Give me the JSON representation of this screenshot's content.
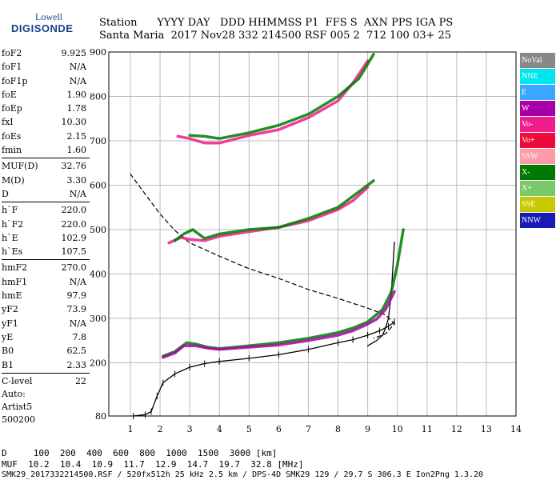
{
  "logo": {
    "line1": "Lowell",
    "line2": "DIGISONDE"
  },
  "header": {
    "line1": "Station      YYYY DAY   DDD HHMMSS P1  FFS S  AXN PPS IGA PS",
    "line2": "Santa Maria  2017 Nov28 332 214500 RSF 005 2  712 100 03+ 25"
  },
  "params": [
    [
      {
        "k": "foF2",
        "v": "9.925"
      },
      {
        "k": "foF1",
        "v": "N/A"
      },
      {
        "k": "foF1p",
        "v": "N/A"
      },
      {
        "k": "foE",
        "v": "1.90"
      },
      {
        "k": "foEp",
        "v": "1.78"
      },
      {
        "k": "fxI",
        "v": "10.30"
      },
      {
        "k": "foEs",
        "v": "2.15"
      },
      {
        "k": "fmin",
        "v": "1.60"
      }
    ],
    [
      {
        "k": "MUF(D)",
        "v": "32.76"
      },
      {
        "k": "M(D)",
        "v": "3.30"
      },
      {
        "k": "D",
        "v": "N/A"
      }
    ],
    [
      {
        "k": "h`F",
        "v": "220.0"
      },
      {
        "k": "h`F2",
        "v": "220.0"
      },
      {
        "k": "h`E",
        "v": "102.9"
      },
      {
        "k": "h`Es",
        "v": "107.5"
      }
    ],
    [
      {
        "k": "hmF2",
        "v": "270.0"
      },
      {
        "k": "hmF1",
        "v": "N/A"
      },
      {
        "k": "hmE",
        "v": "97.9"
      },
      {
        "k": "yF2",
        "v": "73.9"
      },
      {
        "k": "yF1",
        "v": "N/A"
      },
      {
        "k": "yE",
        "v": "7.8"
      },
      {
        "k": "B0",
        "v": "62.5"
      },
      {
        "k": "B1",
        "v": "2.33"
      }
    ],
    [
      {
        "k": "C-level",
        "v": "22"
      }
    ]
  ],
  "auto": {
    "line1": "Auto:",
    "line2": "Artist5",
    "line3": "500200"
  },
  "legend": [
    {
      "label": "NoVal",
      "color": "#888888"
    },
    {
      "label": "NNE",
      "color": "#00e5ee"
    },
    {
      "label": "E",
      "color": "#3aa6ff"
    },
    {
      "label": "W",
      "color": "#a800a8"
    },
    {
      "label": "Vo-",
      "color": "#ee1c8c"
    },
    {
      "label": "Vo+",
      "color": "#ee0a3a"
    },
    {
      "label": "SSW",
      "color": "#ff9aa8"
    },
    {
      "label": "X-",
      "color": "#007a00"
    },
    {
      "label": "X+",
      "color": "#7ac86a"
    },
    {
      "label": "SSE",
      "color": "#c8c800"
    },
    {
      "label": "NNW",
      "color": "#1a1ab4"
    }
  ],
  "footer": {
    "line1": "D     100  200  400  600  800  1000  1500  3000 [km]",
    "line2": "MUF  10.2  10.4  10.9  11.7  12.9  14.7  19.7  32.8 [MHz]",
    "line3": "SMK29_2017332214500.RSF / 520fx512h 25 kHz 2.5 km / DPS-4D SMK29 129 / 29.7 S 306.3 E Ion2Png 1.3.20"
  },
  "chart_data": {
    "type": "scatter",
    "xlim": [
      1,
      14
    ],
    "ylim": [
      80,
      900
    ],
    "x_ticks": [
      1,
      2,
      3,
      4,
      5,
      6,
      7,
      8,
      9,
      10,
      11,
      12,
      13,
      14
    ],
    "y_ticks": [
      80,
      200,
      300,
      400,
      500,
      600,
      700,
      800,
      900
    ],
    "grid": true,
    "series": [
      {
        "type": "profile",
        "color": "#000000",
        "x": [
          1.1,
          1.5,
          1.7,
          1.9,
          2.1,
          2.5,
          3,
          3.5,
          4,
          5,
          6,
          7,
          8,
          8.5,
          9,
          9.4,
          9.7,
          9.9
        ],
        "y": [
          80,
          83,
          90,
          125,
          155,
          175,
          190,
          198,
          203,
          210,
          218,
          230,
          245,
          252,
          262,
          272,
          282,
          292
        ]
      },
      {
        "type": "trace",
        "color": "#000000",
        "x": [
          9.0,
          9.3,
          9.5,
          9.6,
          9.7,
          9.8,
          9.9
        ],
        "y": [
          238,
          250,
          262,
          278,
          300,
          360,
          472
        ]
      },
      {
        "type": "dashed",
        "color": "#000000",
        "x": [
          1,
          1.5,
          2,
          2.5,
          3,
          3.5,
          4,
          5,
          6,
          7,
          8,
          9,
          9.6,
          9.9,
          9.6,
          9.2
        ],
        "y": [
          625,
          580,
          535,
          498,
          470,
          455,
          440,
          412,
          390,
          365,
          345,
          323,
          308,
          288,
          265,
          255
        ]
      },
      {
        "type": "x-trace",
        "color": "#007a00",
        "x": [
          2.1,
          2.5,
          2.9,
          3.2,
          3.6,
          4,
          5,
          6,
          7,
          8,
          8.5,
          9,
          9.5,
          9.8,
          10,
          10.2
        ],
        "y": [
          215,
          225,
          245,
          242,
          235,
          232,
          238,
          245,
          255,
          268,
          278,
          292,
          320,
          360,
          420,
          500
        ]
      },
      {
        "type": "o-trace",
        "color": "#a800a8",
        "x": [
          2.1,
          2.5,
          2.8,
          3.2,
          3.6,
          4,
          5,
          6,
          7,
          8,
          8.5,
          9,
          9.3,
          9.6,
          9.9
        ],
        "y": [
          212,
          222,
          238,
          238,
          233,
          230,
          235,
          240,
          250,
          262,
          272,
          287,
          298,
          320,
          360
        ]
      },
      {
        "type": "o2-trace",
        "color": "#ee1c8c",
        "x": [
          2.3,
          2.7,
          3,
          3.5,
          4,
          5,
          6,
          7,
          8,
          8.5,
          9
        ],
        "y": [
          470,
          482,
          478,
          475,
          485,
          495,
          505,
          520,
          545,
          565,
          595
        ]
      },
      {
        "type": "x2-trace",
        "color": "#007a00",
        "x": [
          2.5,
          2.8,
          3.1,
          3.5,
          4,
          5,
          6,
          7,
          8,
          8.5,
          9.2
        ],
        "y": [
          475,
          490,
          500,
          480,
          490,
          500,
          505,
          525,
          550,
          575,
          610
        ]
      },
      {
        "type": "o3-trace",
        "color": "#ee1c8c",
        "x": [
          2.6,
          3,
          3.5,
          4,
          5,
          6,
          7,
          8,
          8.5,
          9
        ],
        "y": [
          710,
          705,
          695,
          695,
          712,
          725,
          752,
          790,
          830,
          880
        ]
      },
      {
        "type": "x3-trace",
        "color": "#007a00",
        "x": [
          3,
          3.5,
          4,
          5,
          6,
          7,
          8,
          8.7,
          9.2
        ],
        "y": [
          712,
          710,
          705,
          718,
          735,
          760,
          800,
          840,
          895
        ]
      }
    ]
  }
}
